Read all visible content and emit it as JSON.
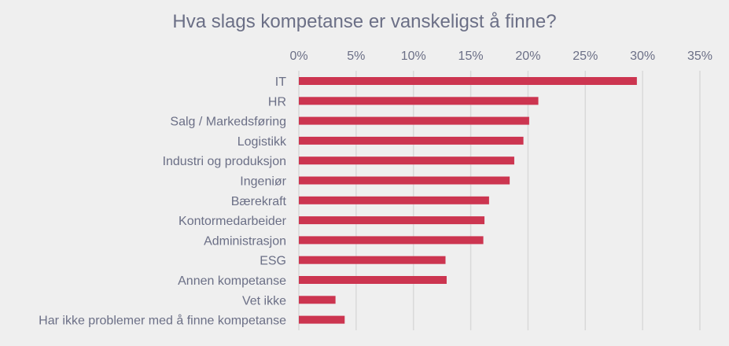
{
  "chart_data": {
    "type": "bar",
    "orientation": "horizontal",
    "title": "Hva slags kompetanse er vanskeligst å finne?",
    "xlabel": "",
    "ylabel": "",
    "xlim": [
      0,
      35
    ],
    "x_ticks": [
      "0%",
      "5%",
      "10%",
      "15%",
      "20%",
      "25%",
      "30%",
      "35%"
    ],
    "x_tick_values": [
      0,
      5,
      10,
      15,
      20,
      25,
      30,
      35
    ],
    "x_axis_position": "top",
    "grid": true,
    "categories": [
      "IT",
      "HR",
      "Salg / Markedsføring",
      "Logistikk",
      "Industri og produksjon",
      "Ingeniør",
      "Bærekraft",
      "Kontormedarbeider",
      "Administrasjon",
      "ESG",
      "Annen kompetanse",
      "Vet ikke",
      "Har ikke problemer med å finne kompetanse"
    ],
    "values": [
      29.5,
      20.9,
      20.1,
      19.6,
      18.8,
      18.4,
      16.6,
      16.2,
      16.1,
      12.8,
      12.9,
      3.2,
      4.0
    ],
    "colors": {
      "bar": "#cc3550",
      "text": "#6b6f86",
      "grid": "#d9d9d9",
      "background": "#efefef"
    }
  }
}
